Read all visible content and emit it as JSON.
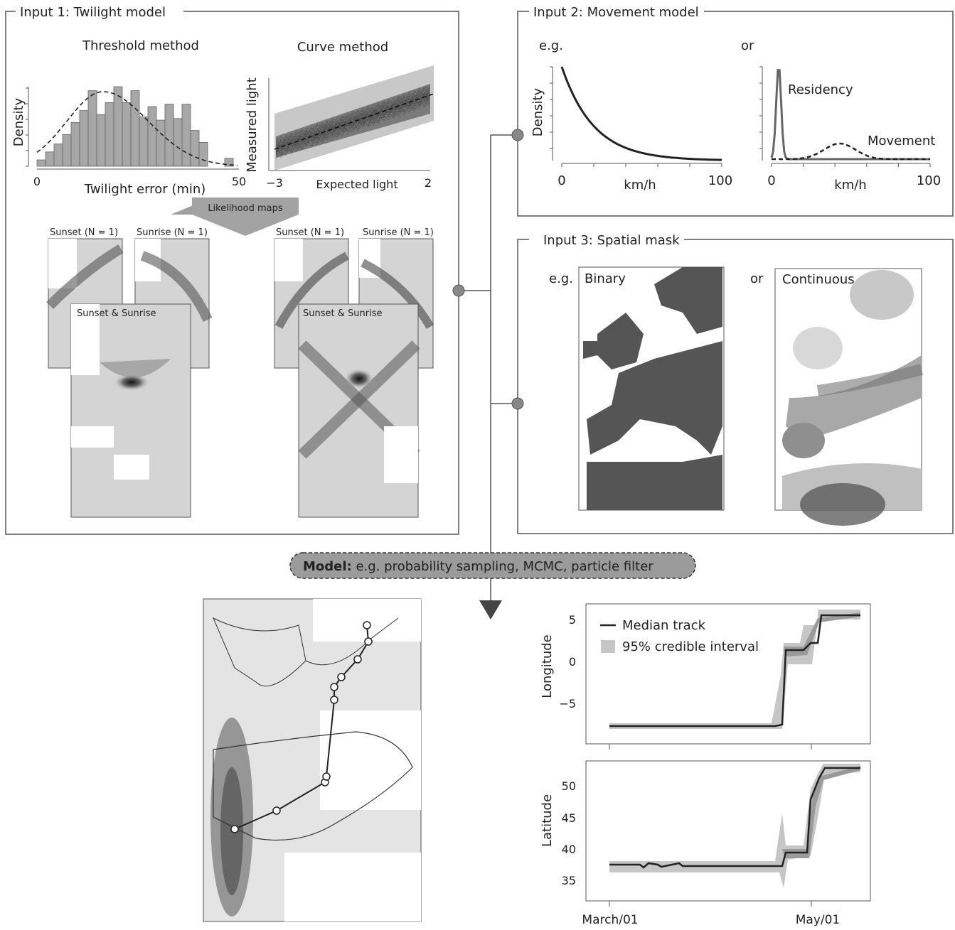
{
  "input1": {
    "title": "Input 1: Twilight model",
    "threshold": {
      "title": "Threshold method",
      "ylabel": "Density",
      "xlabel": "Twilight error (min)",
      "xticks": [
        "0",
        "50"
      ]
    },
    "curve": {
      "title": "Curve method",
      "ylabel": "Measured light",
      "xlabel": "Expected light",
      "xticks": [
        "−3",
        "2"
      ]
    },
    "arrow_label": "Likelihood maps",
    "maps": {
      "sunset": "Sunset (N = 1)",
      "sunrise": "Sunrise (N = 1)",
      "combined": "Sunset & Sunrise"
    }
  },
  "input2": {
    "title": "Input 2: Movement model",
    "eg": "e.g.",
    "or": "or",
    "ylabel": "Density",
    "xlabel": "km/h",
    "xticks": [
      "0",
      "100"
    ],
    "residency": "Residency",
    "movement": "Movement"
  },
  "input3": {
    "title": "Input 3: Spatial mask",
    "eg": "e.g.",
    "or": "or",
    "binary": "Binary",
    "continuous": "Continuous"
  },
  "model": {
    "bold": "Model:",
    "text": " e.g. probability sampling, MCMC, particle filter"
  },
  "output_chart": {
    "legend_median": "Median track",
    "legend_ci": "95% credible interval",
    "x_ticks": [
      "March/01",
      "May/01"
    ]
  },
  "chart_data": [
    {
      "type": "histogram",
      "title": "Threshold method",
      "xlabel": "Twilight error (min)",
      "ylabel": "Density",
      "xlim": [
        0,
        50
      ],
      "bin_heights": [
        0.08,
        0.18,
        0.28,
        0.4,
        0.55,
        0.7,
        0.95,
        0.65,
        0.8,
        1.0,
        0.8,
        0.95,
        0.62,
        0.75,
        0.58,
        0.78,
        0.6,
        0.78,
        0.45,
        0.3,
        0.0,
        0.0,
        0.1
      ]
    },
    {
      "type": "scatter",
      "title": "Curve method",
      "xlabel": "Expected light",
      "ylabel": "Measured light",
      "xlim": [
        -3,
        2
      ]
    },
    {
      "type": "line",
      "xlabel": "km/h",
      "ylabel": "Density",
      "xlim": [
        0,
        100
      ],
      "series": [
        {
          "name": "",
          "shape": "exponential decay"
        }
      ]
    },
    {
      "type": "line",
      "xlabel": "km/h",
      "xlim": [
        0,
        100
      ],
      "series": [
        {
          "name": "Residency",
          "peak_at": 4
        },
        {
          "name": "Movement",
          "peak_at": 43
        }
      ]
    },
    {
      "type": "line",
      "ylabel": "Longitude",
      "yticks": [
        5,
        0,
        -5
      ],
      "x_ticks": [
        "March/01",
        "May/01"
      ],
      "series": [
        {
          "name": "Median track"
        },
        {
          "name": "95% credible interval"
        }
      ]
    },
    {
      "type": "line",
      "ylabel": "Latitude",
      "yticks": [
        50,
        45,
        40,
        35
      ],
      "x_ticks": [
        "March/01",
        "May/01"
      ],
      "series": [
        {
          "name": "Median track"
        },
        {
          "name": "95% credible interval"
        }
      ]
    }
  ]
}
